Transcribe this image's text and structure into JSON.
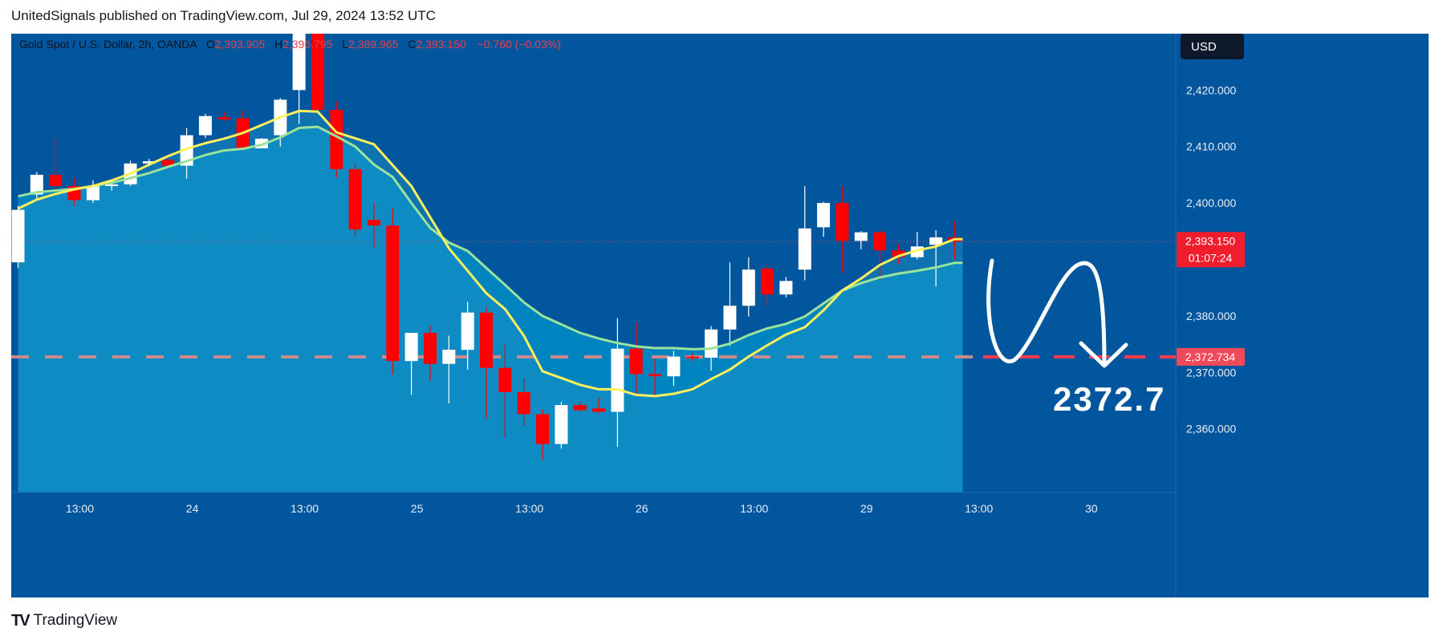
{
  "header": {
    "published_line": "UnitedSignals published on TradingView.com, Jul 29, 2024 13:52 UTC"
  },
  "footer": {
    "brand_mark": "TV",
    "brand_name": "TradingView"
  },
  "colors": {
    "background": "#02569E",
    "area_fill": "#0084BF",
    "area_fill_light": "#1F95C8",
    "bull_candle": "#FFFFFF",
    "bear_candle": "#FF0000",
    "ma_fast": "#FFF15A",
    "ma_slow": "#9AE39A",
    "target_line": "#FF3B4D",
    "axis_text": "#E6EEF7"
  },
  "legend": {
    "symbol": "Gold Spot / U.S. Dollar, 2h, OANDA",
    "o_label": "O",
    "o_value": "2,393.905",
    "h_label": "H",
    "h_value": "2,396.795",
    "l_label": "L",
    "l_value": "2,389.965",
    "c_label": "C",
    "c_value": "2,393.150",
    "change": "−0.760 (−0.03%)"
  },
  "currency_button": "USD",
  "price_label": {
    "value": "2,393.150",
    "countdown": "01:07:24"
  },
  "target_label": "2,372.734",
  "annotation_text": "2372.7",
  "chart_data": {
    "type": "candlestick",
    "title": "Gold Spot / U.S. Dollar, 2h, OANDA",
    "ylim": [
      2352,
      2428
    ],
    "y_ticks": [
      {
        "label": "2,420.000",
        "value": 2420
      },
      {
        "label": "2,410.000",
        "value": 2410
      },
      {
        "label": "2,400.000",
        "value": 2400
      },
      {
        "label": "2,380.000",
        "value": 2380
      },
      {
        "label": "2,370.000",
        "value": 2370
      },
      {
        "label": "2,360.000",
        "value": 2360
      }
    ],
    "x_ticks": [
      {
        "label": "13:00",
        "index": 3.3
      },
      {
        "label": "24",
        "index": 9.3
      },
      {
        "label": "13:00",
        "index": 15.3
      },
      {
        "label": "25",
        "index": 21.3
      },
      {
        "label": "13:00",
        "index": 27.3
      },
      {
        "label": "26",
        "index": 33.3
      },
      {
        "label": "13:00",
        "index": 39.3
      },
      {
        "label": "29",
        "index": 45.3
      },
      {
        "label": "13:00",
        "index": 51.3
      },
      {
        "label": "30",
        "index": 57.3
      }
    ],
    "candles": [
      {
        "o": 2389.5,
        "h": 2399.5,
        "l": 2388.5,
        "c": 2398.8
      },
      {
        "o": 2401.5,
        "h": 2405.5,
        "l": 2400.5,
        "c": 2405.0
      },
      {
        "o": 2405.0,
        "h": 2411.5,
        "l": 2402.0,
        "c": 2403.0
      },
      {
        "o": 2403.0,
        "h": 2404.5,
        "l": 2399.5,
        "c": 2400.5
      },
      {
        "o": 2400.5,
        "h": 2404.0,
        "l": 2400.0,
        "c": 2403.0
      },
      {
        "o": 2403.0,
        "h": 2404.0,
        "l": 2402.2,
        "c": 2403.3
      },
      {
        "o": 2403.3,
        "h": 2407.5,
        "l": 2403.0,
        "c": 2407.0
      },
      {
        "o": 2407.0,
        "h": 2407.8,
        "l": 2406.5,
        "c": 2407.4
      },
      {
        "o": 2407.6,
        "h": 2408.0,
        "l": 2406.3,
        "c": 2406.6
      },
      {
        "o": 2406.6,
        "h": 2413.3,
        "l": 2404.3,
        "c": 2412.0
      },
      {
        "o": 2412.0,
        "h": 2415.8,
        "l": 2411.5,
        "c": 2415.4
      },
      {
        "o": 2415.2,
        "h": 2416.2,
        "l": 2414.5,
        "c": 2414.8
      },
      {
        "o": 2415.0,
        "h": 2416.3,
        "l": 2409.7,
        "c": 2409.7
      },
      {
        "o": 2409.7,
        "h": 2411.5,
        "l": 2409.7,
        "c": 2411.4
      },
      {
        "o": 2412.0,
        "h": 2418.6,
        "l": 2410.0,
        "c": 2418.3
      },
      {
        "o": 2420.0,
        "h": 2430.0,
        "l": 2414.0,
        "c": 2430.0
      },
      {
        "o": 2430.0,
        "h": 2430.0,
        "l": 2416.5,
        "c": 2416.5
      },
      {
        "o": 2416.5,
        "h": 2418.0,
        "l": 2404.5,
        "c": 2406.0
      },
      {
        "o": 2406.0,
        "h": 2407.0,
        "l": 2394.0,
        "c": 2395.3
      },
      {
        "o": 2397.0,
        "h": 2400.0,
        "l": 2392.0,
        "c": 2396.0
      },
      {
        "o": 2396.0,
        "h": 2399.0,
        "l": 2369.6,
        "c": 2372.0
      },
      {
        "o": 2372.0,
        "h": 2377.0,
        "l": 2366.0,
        "c": 2377.0
      },
      {
        "o": 2377.0,
        "h": 2378.3,
        "l": 2368.5,
        "c": 2371.5
      },
      {
        "o": 2371.5,
        "h": 2376.5,
        "l": 2364.5,
        "c": 2374.0
      },
      {
        "o": 2374.0,
        "h": 2382.5,
        "l": 2370.5,
        "c": 2380.6
      },
      {
        "o": 2380.6,
        "h": 2381.5,
        "l": 2361.8,
        "c": 2370.8
      },
      {
        "o": 2370.8,
        "h": 2375.0,
        "l": 2358.4,
        "c": 2366.5
      },
      {
        "o": 2366.5,
        "h": 2369.0,
        "l": 2360.5,
        "c": 2362.6
      },
      {
        "o": 2362.6,
        "h": 2363.5,
        "l": 2354.5,
        "c": 2357.3
      },
      {
        "o": 2357.3,
        "h": 2364.8,
        "l": 2356.5,
        "c": 2364.2
      },
      {
        "o": 2364.2,
        "h": 2364.8,
        "l": 2363.0,
        "c": 2363.3
      },
      {
        "o": 2363.6,
        "h": 2365.5,
        "l": 2362.8,
        "c": 2363.0
      },
      {
        "o": 2363.0,
        "h": 2379.6,
        "l": 2356.8,
        "c": 2374.2
      },
      {
        "o": 2374.2,
        "h": 2378.9,
        "l": 2365.8,
        "c": 2369.7
      },
      {
        "o": 2369.7,
        "h": 2372.4,
        "l": 2365.8,
        "c": 2369.3
      },
      {
        "o": 2369.3,
        "h": 2373.8,
        "l": 2367.6,
        "c": 2372.8
      },
      {
        "o": 2372.8,
        "h": 2373.3,
        "l": 2372.0,
        "c": 2372.6
      },
      {
        "o": 2372.6,
        "h": 2378.2,
        "l": 2370.3,
        "c": 2377.6
      },
      {
        "o": 2377.6,
        "h": 2389.5,
        "l": 2374.7,
        "c": 2381.8
      },
      {
        "o": 2381.8,
        "h": 2390.4,
        "l": 2379.9,
        "c": 2388.2
      },
      {
        "o": 2388.4,
        "h": 2389.1,
        "l": 2381.8,
        "c": 2383.8
      },
      {
        "o": 2383.8,
        "h": 2386.9,
        "l": 2383.3,
        "c": 2386.2
      },
      {
        "o": 2388.2,
        "h": 2403.0,
        "l": 2386.3,
        "c": 2395.5
      },
      {
        "o": 2395.7,
        "h": 2400.2,
        "l": 2394.0,
        "c": 2400.0
      },
      {
        "o": 2400.0,
        "h": 2403.0,
        "l": 2387.6,
        "c": 2393.3
      },
      {
        "o": 2393.3,
        "h": 2395.0,
        "l": 2391.8,
        "c": 2394.8
      },
      {
        "o": 2394.8,
        "h": 2395.2,
        "l": 2386.3,
        "c": 2391.6
      },
      {
        "o": 2391.6,
        "h": 2392.7,
        "l": 2389.2,
        "c": 2390.4
      },
      {
        "o": 2390.4,
        "h": 2394.9,
        "l": 2390.0,
        "c": 2392.3
      },
      {
        "o": 2392.6,
        "h": 2395.2,
        "l": 2385.2,
        "c": 2393.9
      },
      {
        "o": 2393.9,
        "h": 2396.8,
        "l": 2390.0,
        "c": 2393.15
      }
    ],
    "ma_fast": [
      [
        0,
        2399.0
      ],
      [
        1,
        2400.6
      ],
      [
        2,
        2401.6
      ],
      [
        3,
        2402.4
      ],
      [
        4,
        2403.0
      ],
      [
        5,
        2404.0
      ],
      [
        6,
        2405.2
      ],
      [
        7,
        2406.8
      ],
      [
        8,
        2408.3
      ],
      [
        9,
        2409.6
      ],
      [
        10,
        2410.6
      ],
      [
        11,
        2411.4
      ],
      [
        12,
        2412.4
      ],
      [
        13,
        2413.8
      ],
      [
        14,
        2415.2
      ],
      [
        15,
        2416.3
      ],
      [
        16,
        2416.2
      ],
      [
        17,
        2412.5
      ],
      [
        19,
        2410.4
      ],
      [
        21,
        2403.0
      ],
      [
        23,
        2392.0
      ],
      [
        25,
        2384.0
      ],
      [
        26,
        2381.2
      ],
      [
        27,
        2376.5
      ],
      [
        28,
        2370.2
      ],
      [
        29,
        2369.0
      ],
      [
        30,
        2367.8
      ],
      [
        31,
        2367.0
      ],
      [
        32,
        2367.0
      ],
      [
        33,
        2366.0
      ],
      [
        34,
        2365.8
      ],
      [
        35,
        2366.2
      ],
      [
        36,
        2367.0
      ],
      [
        37,
        2368.8
      ],
      [
        38,
        2370.5
      ],
      [
        39,
        2372.8
      ],
      [
        40,
        2374.8
      ],
      [
        41,
        2376.7
      ],
      [
        42,
        2378.0
      ],
      [
        43,
        2381.0
      ],
      [
        44,
        2384.5
      ],
      [
        45,
        2386.6
      ],
      [
        46,
        2389.0
      ],
      [
        47,
        2390.6
      ],
      [
        48,
        2391.6
      ],
      [
        49,
        2392.3
      ],
      [
        50,
        2393.6
      ]
    ],
    "ma_slow": [
      [
        0,
        2401.2
      ],
      [
        1,
        2401.9
      ],
      [
        2,
        2402.2
      ],
      [
        3,
        2402.5
      ],
      [
        4,
        2403.0
      ],
      [
        5,
        2403.6
      ],
      [
        6,
        2404.4
      ],
      [
        7,
        2405.3
      ],
      [
        8,
        2406.4
      ],
      [
        9,
        2407.4
      ],
      [
        10,
        2408.5
      ],
      [
        11,
        2409.3
      ],
      [
        12,
        2409.6
      ],
      [
        13,
        2410.3
      ],
      [
        14,
        2411.6
      ],
      [
        15,
        2413.3
      ],
      [
        16,
        2413.5
      ],
      [
        17,
        2411.8
      ],
      [
        18,
        2410.0
      ],
      [
        19,
        2406.8
      ],
      [
        20,
        2404.6
      ],
      [
        21,
        2400.0
      ],
      [
        22,
        2395.6
      ],
      [
        23,
        2393.0
      ],
      [
        24,
        2391.5
      ],
      [
        25,
        2388.5
      ],
      [
        26,
        2385.5
      ],
      [
        27,
        2382.4
      ],
      [
        28,
        2380.0
      ],
      [
        29,
        2378.5
      ],
      [
        30,
        2377.0
      ],
      [
        31,
        2376.0
      ],
      [
        32,
        2375.2
      ],
      [
        33,
        2374.6
      ],
      [
        34,
        2374.3
      ],
      [
        35,
        2374.3
      ],
      [
        36,
        2374.1
      ],
      [
        37,
        2374.2
      ],
      [
        38,
        2375.1
      ],
      [
        39,
        2376.6
      ],
      [
        40,
        2377.8
      ],
      [
        41,
        2378.6
      ],
      [
        42,
        2379.9
      ],
      [
        43,
        2382.2
      ],
      [
        44,
        2384.5
      ],
      [
        45,
        2385.8
      ],
      [
        46,
        2386.8
      ],
      [
        47,
        2387.5
      ],
      [
        48,
        2388.0
      ],
      [
        49,
        2388.6
      ],
      [
        50,
        2389.4
      ]
    ],
    "current_price": 2393.15,
    "target_price": 2372.734
  }
}
